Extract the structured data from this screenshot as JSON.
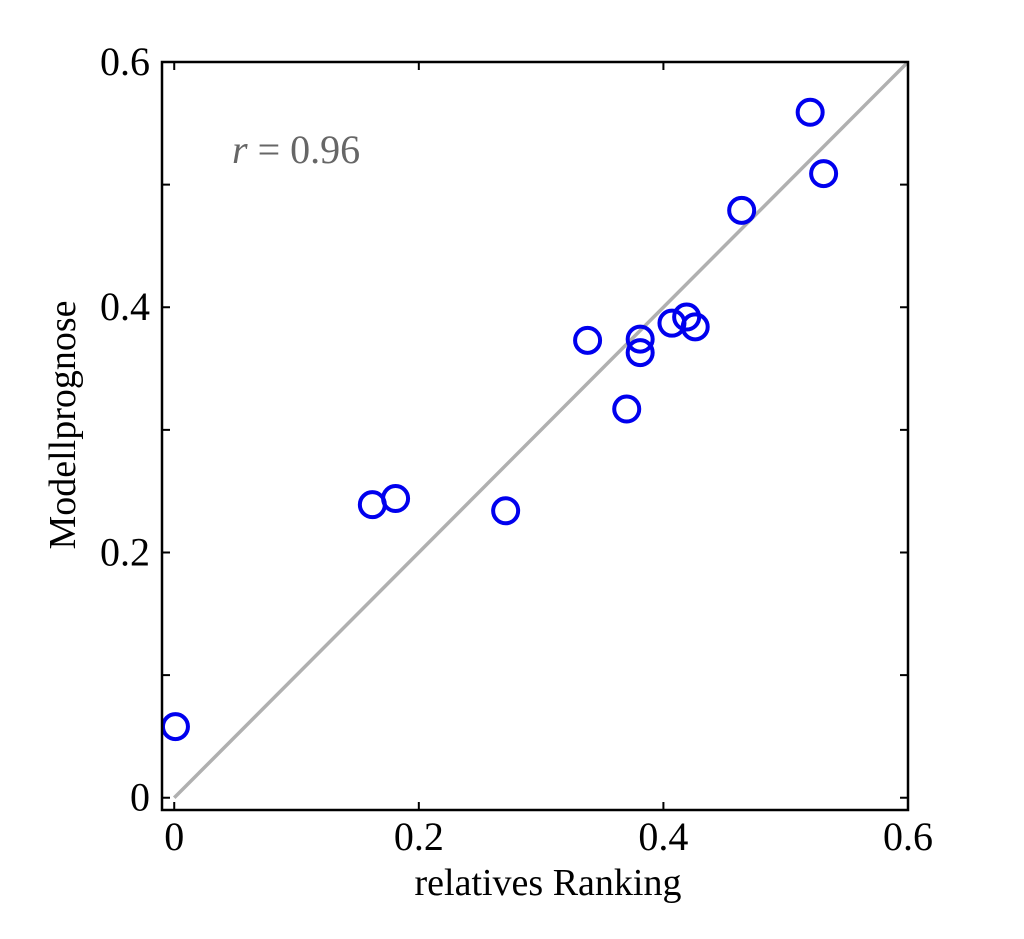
{
  "chart_data": {
    "type": "scatter",
    "title": "",
    "xlabel": "relatives Ranking",
    "ylabel": "Modellprognose",
    "xlim": [
      -0.01,
      0.6
    ],
    "ylim": [
      -0.01,
      0.6
    ],
    "xticks": [
      0,
      0.2,
      0.4,
      0.6
    ],
    "yticks": [
      0,
      0.2,
      0.4,
      0.6
    ],
    "xtick_labels": [
      "0",
      "0.2",
      "0.4",
      "0.6"
    ],
    "ytick_labels": [
      "0",
      "0.2",
      "0.4",
      "0.6"
    ],
    "grid": false,
    "annotation": {
      "prefix": "r",
      "text": " = 0.96"
    },
    "reference_line": {
      "from": [
        0,
        0
      ],
      "to": [
        0.6,
        0.6
      ],
      "color": "#b0b0b0"
    },
    "marker_color": "#0000ee",
    "points": [
      {
        "x": 0.001,
        "y": 0.058
      },
      {
        "x": 0.162,
        "y": 0.239
      },
      {
        "x": 0.181,
        "y": 0.244
      },
      {
        "x": 0.271,
        "y": 0.234
      },
      {
        "x": 0.338,
        "y": 0.373
      },
      {
        "x": 0.37,
        "y": 0.317
      },
      {
        "x": 0.381,
        "y": 0.374
      },
      {
        "x": 0.381,
        "y": 0.363
      },
      {
        "x": 0.407,
        "y": 0.387
      },
      {
        "x": 0.419,
        "y": 0.392
      },
      {
        "x": 0.426,
        "y": 0.384
      },
      {
        "x": 0.464,
        "y": 0.479
      },
      {
        "x": 0.52,
        "y": 0.559
      },
      {
        "x": 0.531,
        "y": 0.509
      }
    ]
  }
}
